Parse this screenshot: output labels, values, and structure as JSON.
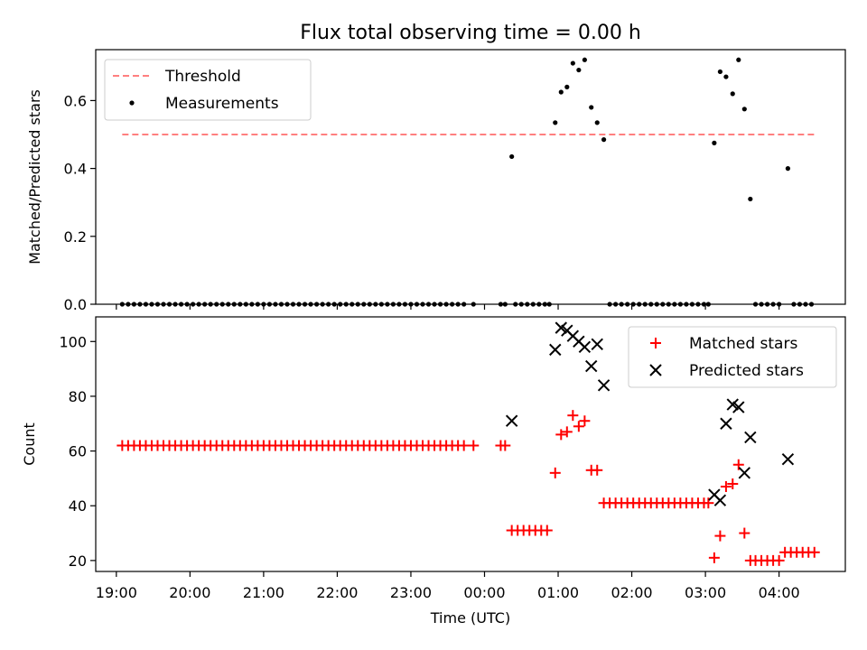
{
  "figure_title": "Flux total observing time = 0.00 h",
  "chart_data": [
    {
      "type": "scatter",
      "panel": "top",
      "ylabel": "Matched/Predicted stars",
      "ylim": [
        0,
        0.75
      ],
      "yticks": [
        0.0,
        0.2,
        0.4,
        0.6
      ],
      "ytick_labels": [
        "0.0",
        "0.2",
        "0.4",
        "0.6"
      ],
      "xlim_hours": [
        18.72,
        28.9
      ],
      "grid": false,
      "legend_position": "upper-left",
      "threshold": {
        "name": "Threshold",
        "value": 0.5,
        "x_start_hours": 19.08,
        "x_end_hours": 28.48,
        "color": "#ff7f7f",
        "style": "dashed"
      },
      "series": [
        {
          "name": "Measurements",
          "color": "#000000",
          "marker": "dot",
          "points": [
            [
              19.08,
              0
            ],
            [
              19.16,
              0
            ],
            [
              19.24,
              0
            ],
            [
              19.32,
              0
            ],
            [
              19.4,
              0
            ],
            [
              19.48,
              0
            ],
            [
              19.56,
              0
            ],
            [
              19.64,
              0
            ],
            [
              19.72,
              0
            ],
            [
              19.8,
              0
            ],
            [
              19.88,
              0
            ],
            [
              19.96,
              0
            ],
            [
              20.04,
              0
            ],
            [
              20.12,
              0
            ],
            [
              20.2,
              0
            ],
            [
              20.28,
              0
            ],
            [
              20.36,
              0
            ],
            [
              20.44,
              0
            ],
            [
              20.52,
              0
            ],
            [
              20.6,
              0
            ],
            [
              20.68,
              0
            ],
            [
              20.76,
              0
            ],
            [
              20.84,
              0
            ],
            [
              20.92,
              0
            ],
            [
              21.0,
              0
            ],
            [
              21.08,
              0
            ],
            [
              21.16,
              0
            ],
            [
              21.24,
              0
            ],
            [
              21.32,
              0
            ],
            [
              21.4,
              0
            ],
            [
              21.48,
              0
            ],
            [
              21.56,
              0
            ],
            [
              21.64,
              0
            ],
            [
              21.72,
              0
            ],
            [
              21.8,
              0
            ],
            [
              21.88,
              0
            ],
            [
              21.96,
              0
            ],
            [
              22.04,
              0
            ],
            [
              22.12,
              0
            ],
            [
              22.2,
              0
            ],
            [
              22.28,
              0
            ],
            [
              22.36,
              0
            ],
            [
              22.44,
              0
            ],
            [
              22.52,
              0
            ],
            [
              22.6,
              0
            ],
            [
              22.68,
              0
            ],
            [
              22.76,
              0
            ],
            [
              22.84,
              0
            ],
            [
              22.92,
              0
            ],
            [
              23.0,
              0
            ],
            [
              23.08,
              0
            ],
            [
              23.16,
              0
            ],
            [
              23.24,
              0
            ],
            [
              23.32,
              0
            ],
            [
              23.4,
              0
            ],
            [
              23.48,
              0
            ],
            [
              23.56,
              0
            ],
            [
              23.64,
              0
            ],
            [
              23.72,
              0
            ],
            [
              23.85,
              0
            ],
            [
              24.22,
              0
            ],
            [
              24.28,
              0
            ],
            [
              24.37,
              0.435
            ],
            [
              24.42,
              0
            ],
            [
              24.5,
              0
            ],
            [
              24.58,
              0
            ],
            [
              24.66,
              0
            ],
            [
              24.74,
              0
            ],
            [
              24.82,
              0
            ],
            [
              24.88,
              0
            ],
            [
              24.96,
              0.535
            ],
            [
              25.04,
              0.625
            ],
            [
              25.12,
              0.64
            ],
            [
              25.2,
              0.71
            ],
            [
              25.28,
              0.69
            ],
            [
              25.36,
              0.72
            ],
            [
              25.45,
              0.58
            ],
            [
              25.53,
              0.535
            ],
            [
              25.62,
              0.485
            ],
            [
              25.7,
              0
            ],
            [
              25.78,
              0
            ],
            [
              25.86,
              0
            ],
            [
              25.94,
              0
            ],
            [
              26.02,
              0
            ],
            [
              26.1,
              0
            ],
            [
              26.18,
              0
            ],
            [
              26.26,
              0
            ],
            [
              26.34,
              0
            ],
            [
              26.42,
              0
            ],
            [
              26.5,
              0
            ],
            [
              26.58,
              0
            ],
            [
              26.66,
              0
            ],
            [
              26.74,
              0
            ],
            [
              26.82,
              0
            ],
            [
              26.9,
              0
            ],
            [
              26.98,
              0
            ],
            [
              27.04,
              0
            ],
            [
              27.12,
              0.475
            ],
            [
              27.2,
              0.685
            ],
            [
              27.28,
              0.67
            ],
            [
              27.37,
              0.62
            ],
            [
              27.45,
              0.72
            ],
            [
              27.53,
              0.575
            ],
            [
              27.61,
              0.31
            ],
            [
              27.68,
              0
            ],
            [
              27.76,
              0
            ],
            [
              27.84,
              0
            ],
            [
              27.92,
              0
            ],
            [
              28.0,
              0
            ],
            [
              28.12,
              0.4
            ],
            [
              28.2,
              0
            ],
            [
              28.28,
              0
            ],
            [
              28.36,
              0
            ],
            [
              28.44,
              0
            ]
          ]
        }
      ]
    },
    {
      "type": "scatter",
      "panel": "bottom",
      "xlabel": "Time (UTC)",
      "ylabel": "Count",
      "ylim": [
        16,
        109
      ],
      "yticks": [
        20,
        40,
        60,
        80,
        100
      ],
      "ytick_labels": [
        "20",
        "40",
        "60",
        "80",
        "100"
      ],
      "xlim_hours": [
        18.72,
        28.9
      ],
      "xticks_hours": [
        19,
        20,
        21,
        22,
        23,
        24,
        25,
        26,
        27,
        28
      ],
      "xtick_labels": [
        "19:00",
        "20:00",
        "21:00",
        "22:00",
        "23:00",
        "00:00",
        "01:00",
        "02:00",
        "03:00",
        "04:00"
      ],
      "grid": false,
      "legend_position": "upper-right",
      "series": [
        {
          "name": "Matched stars",
          "color": "#ff0000",
          "marker": "plus",
          "points": [
            [
              19.08,
              62
            ],
            [
              19.16,
              62
            ],
            [
              19.24,
              62
            ],
            [
              19.32,
              62
            ],
            [
              19.4,
              62
            ],
            [
              19.48,
              62
            ],
            [
              19.56,
              62
            ],
            [
              19.64,
              62
            ],
            [
              19.72,
              62
            ],
            [
              19.8,
              62
            ],
            [
              19.88,
              62
            ],
            [
              19.96,
              62
            ],
            [
              20.04,
              62
            ],
            [
              20.12,
              62
            ],
            [
              20.2,
              62
            ],
            [
              20.28,
              62
            ],
            [
              20.36,
              62
            ],
            [
              20.44,
              62
            ],
            [
              20.52,
              62
            ],
            [
              20.6,
              62
            ],
            [
              20.68,
              62
            ],
            [
              20.76,
              62
            ],
            [
              20.84,
              62
            ],
            [
              20.92,
              62
            ],
            [
              21.0,
              62
            ],
            [
              21.08,
              62
            ],
            [
              21.16,
              62
            ],
            [
              21.24,
              62
            ],
            [
              21.32,
              62
            ],
            [
              21.4,
              62
            ],
            [
              21.48,
              62
            ],
            [
              21.56,
              62
            ],
            [
              21.64,
              62
            ],
            [
              21.72,
              62
            ],
            [
              21.8,
              62
            ],
            [
              21.88,
              62
            ],
            [
              21.96,
              62
            ],
            [
              22.04,
              62
            ],
            [
              22.12,
              62
            ],
            [
              22.2,
              62
            ],
            [
              22.28,
              62
            ],
            [
              22.36,
              62
            ],
            [
              22.44,
              62
            ],
            [
              22.52,
              62
            ],
            [
              22.6,
              62
            ],
            [
              22.68,
              62
            ],
            [
              22.76,
              62
            ],
            [
              22.84,
              62
            ],
            [
              22.92,
              62
            ],
            [
              23.0,
              62
            ],
            [
              23.08,
              62
            ],
            [
              23.16,
              62
            ],
            [
              23.24,
              62
            ],
            [
              23.32,
              62
            ],
            [
              23.4,
              62
            ],
            [
              23.48,
              62
            ],
            [
              23.56,
              62
            ],
            [
              23.64,
              62
            ],
            [
              23.72,
              62
            ],
            [
              23.85,
              62
            ],
            [
              24.22,
              62
            ],
            [
              24.28,
              62
            ],
            [
              24.37,
              31
            ],
            [
              24.45,
              31
            ],
            [
              24.53,
              31
            ],
            [
              24.61,
              31
            ],
            [
              24.69,
              31
            ],
            [
              24.77,
              31
            ],
            [
              24.85,
              31
            ],
            [
              24.96,
              52
            ],
            [
              25.04,
              66
            ],
            [
              25.12,
              67
            ],
            [
              25.2,
              73
            ],
            [
              25.28,
              69
            ],
            [
              25.36,
              71
            ],
            [
              25.45,
              53
            ],
            [
              25.53,
              53
            ],
            [
              25.62,
              41
            ],
            [
              25.7,
              41
            ],
            [
              25.78,
              41
            ],
            [
              25.86,
              41
            ],
            [
              25.94,
              41
            ],
            [
              26.02,
              41
            ],
            [
              26.1,
              41
            ],
            [
              26.18,
              41
            ],
            [
              26.26,
              41
            ],
            [
              26.34,
              41
            ],
            [
              26.42,
              41
            ],
            [
              26.5,
              41
            ],
            [
              26.58,
              41
            ],
            [
              26.66,
              41
            ],
            [
              26.74,
              41
            ],
            [
              26.82,
              41
            ],
            [
              26.9,
              41
            ],
            [
              26.98,
              41
            ],
            [
              27.04,
              41
            ],
            [
              27.12,
              21
            ],
            [
              27.2,
              29
            ],
            [
              27.28,
              47
            ],
            [
              27.37,
              48
            ],
            [
              27.45,
              55
            ],
            [
              27.53,
              30
            ],
            [
              27.61,
              20
            ],
            [
              27.68,
              20
            ],
            [
              27.76,
              20
            ],
            [
              27.84,
              20
            ],
            [
              27.92,
              20
            ],
            [
              28.0,
              20
            ],
            [
              28.08,
              23
            ],
            [
              28.16,
              23
            ],
            [
              28.24,
              23
            ],
            [
              28.32,
              23
            ],
            [
              28.4,
              23
            ],
            [
              28.48,
              23
            ]
          ]
        },
        {
          "name": "Predicted stars",
          "color": "#000000",
          "marker": "x",
          "points": [
            [
              24.37,
              71
            ],
            [
              24.96,
              97
            ],
            [
              25.04,
              105
            ],
            [
              25.12,
              104
            ],
            [
              25.2,
              102
            ],
            [
              25.28,
              100
            ],
            [
              25.36,
              98
            ],
            [
              25.45,
              91
            ],
            [
              25.53,
              99
            ],
            [
              25.62,
              84
            ],
            [
              27.12,
              44
            ],
            [
              27.2,
              42
            ],
            [
              27.28,
              70
            ],
            [
              27.37,
              77
            ],
            [
              27.45,
              76
            ],
            [
              27.53,
              52
            ],
            [
              27.61,
              65
            ],
            [
              28.12,
              57
            ]
          ]
        }
      ]
    }
  ]
}
